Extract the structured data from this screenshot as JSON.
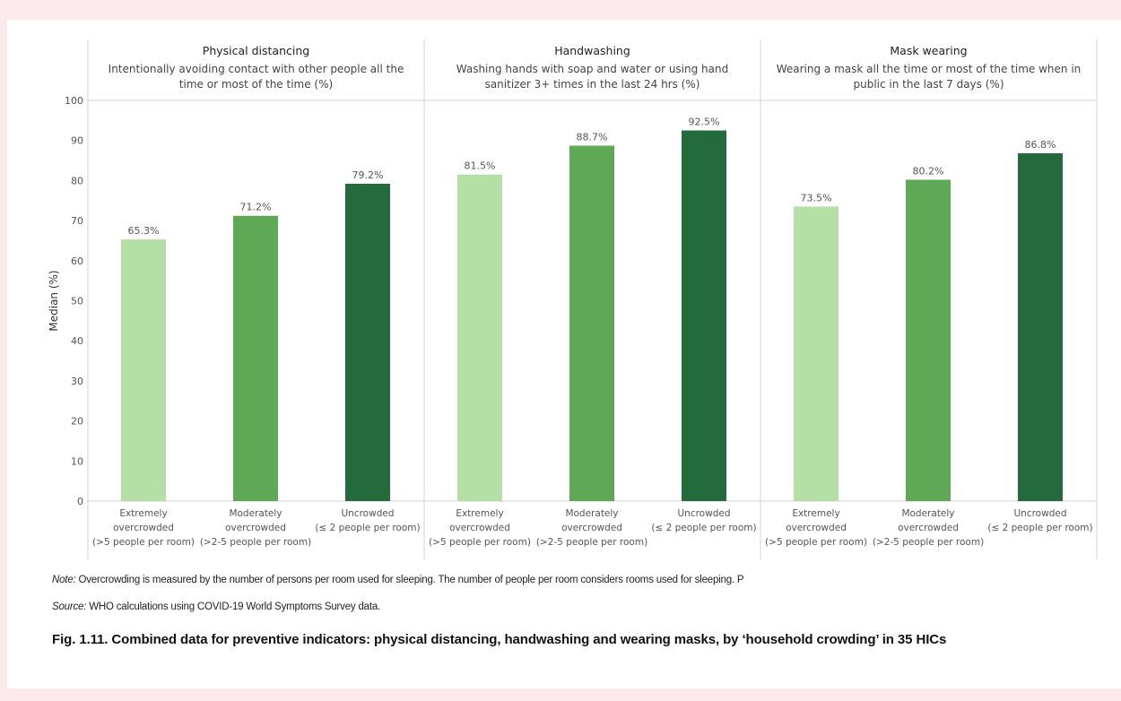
{
  "chart_data": {
    "type": "bar",
    "ylabel": "Median (%)",
    "ylim": [
      0,
      100
    ],
    "yticks": [
      0,
      10,
      20,
      30,
      40,
      50,
      60,
      70,
      80,
      90,
      100
    ],
    "grid": false,
    "categories": [
      [
        "Extremely",
        "overcrowded",
        "(>5 people per room)"
      ],
      [
        "Moderately",
        "overcrowded",
        "(>2-5 people per room)"
      ],
      [
        "Uncrowded",
        "(≤ 2 people per room)"
      ]
    ],
    "colors": [
      "#b4e0a6",
      "#5fa856",
      "#236b3d"
    ],
    "panels": [
      {
        "title": "Physical distancing",
        "subtitle": [
          "Intentionally avoiding contact with other people all the",
          "time or most of the time (%)"
        ],
        "values": [
          65.3,
          71.2,
          79.2
        ],
        "labels": [
          "65.3%",
          "71.2%",
          "79.2%"
        ]
      },
      {
        "title": "Handwashing",
        "subtitle": [
          "Washing hands with soap and water or using hand",
          "sanitizer 3+ times in the last 24 hrs (%)"
        ],
        "values": [
          81.5,
          88.7,
          92.5
        ],
        "labels": [
          "81.5%",
          "88.7%",
          "92.5%"
        ]
      },
      {
        "title": "Mask wearing",
        "subtitle": [
          "Wearing a mask all the time or most of the time when in",
          "public in the last 7 days (%)"
        ],
        "values": [
          73.5,
          80.2,
          86.8
        ],
        "labels": [
          "73.5%",
          "80.2%",
          "86.8%"
        ]
      }
    ]
  },
  "footer": {
    "note_label": "Note:",
    "note_text": " Overcrowding is measured by the number of persons per room used for sleeping. The number of people per room considers rooms used for sleeping. P",
    "source_label": "Source:",
    "source_text": " WHO calculations using COVID-19 World Symptoms Survey data.",
    "caption": "Fig. 1.11. Combined data for preventive indicators: physical distancing, handwashing and wearing masks, by ‘household crowding’ in 35 HICs"
  }
}
